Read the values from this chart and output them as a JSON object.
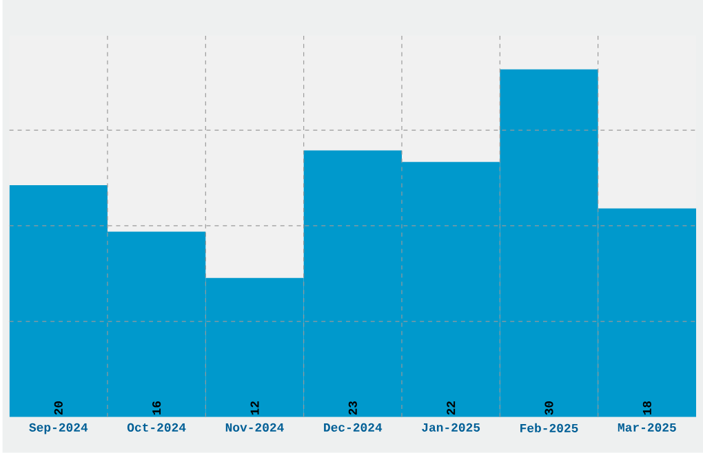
{
  "chart_data": {
    "type": "bar",
    "categories": [
      "Sep-2024",
      "Oct-2024",
      "Nov-2024",
      "Dec-2024",
      "Jan-2025",
      "Feb-2025",
      "Mar-2025"
    ],
    "values": [
      20,
      16,
      12,
      23,
      22,
      30,
      18
    ],
    "color": "#0099cc",
    "ylim": [
      0,
      32.9
    ],
    "yticks": [
      {
        "value": 8.25,
        "label": null
      },
      {
        "value": 16.5,
        "label": null
      },
      {
        "value": 24.75,
        "label": null
      }
    ],
    "tick_labels": "x",
    "grid": true,
    "data_labels": true
  }
}
